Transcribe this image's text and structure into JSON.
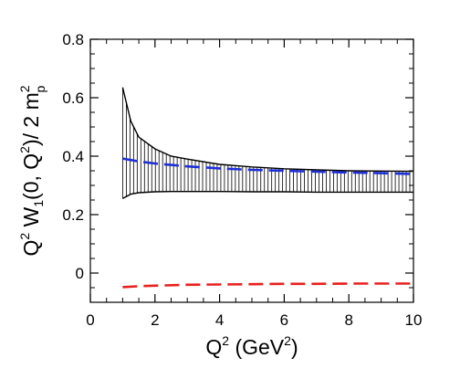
{
  "chart_data": {
    "type": "line",
    "xlabel": {
      "base": "Q",
      "sup": "2",
      "rest": " (GeV",
      "sup2": "2",
      "close": ")"
    },
    "ylabel": {
      "a": "Q",
      "a_sup": "2",
      "b": " W",
      "b_sub": "1",
      "c": "(0, Q",
      "c_sup": "2",
      "d": ")/ 2 m",
      "d_sup": "2",
      "d_sub": "p"
    },
    "xlim": [
      0,
      10
    ],
    "ylim": [
      -0.1,
      0.8
    ],
    "x_ticks": [
      0,
      2,
      4,
      6,
      8,
      10
    ],
    "x_tick_labels": [
      "0",
      "2",
      "4",
      "6",
      "8",
      "10"
    ],
    "y_ticks": [
      0,
      0.2,
      0.4,
      0.6,
      0.8
    ],
    "y_tick_labels": [
      "0",
      "0.2",
      "0.4",
      "0.6",
      "0.8"
    ],
    "grid": false,
    "band": {
      "x": [
        1.0,
        1.25,
        1.5,
        2.0,
        2.5,
        3.0,
        4.0,
        5.0,
        6.0,
        7.0,
        8.0,
        9.0,
        10.0
      ],
      "upper": [
        0.635,
        0.52,
        0.465,
        0.425,
        0.4,
        0.39,
        0.372,
        0.363,
        0.357,
        0.353,
        0.35,
        0.349,
        0.348
      ],
      "lower": [
        0.255,
        0.27,
        0.275,
        0.278,
        0.279,
        0.279,
        0.279,
        0.278,
        0.278,
        0.277,
        0.277,
        0.277,
        0.277
      ],
      "color": "#000000"
    },
    "series": [
      {
        "x": [
          1.0,
          1.5,
          2.0,
          3.0,
          4.0,
          5.0,
          6.0,
          7.0,
          8.0,
          9.0,
          10.0
        ],
        "values": [
          0.392,
          0.382,
          0.375,
          0.365,
          0.358,
          0.353,
          0.35,
          0.347,
          0.344,
          0.342,
          0.339
        ],
        "color": "#1f2fd8",
        "dash": "long"
      },
      {
        "x": [
          1.0,
          1.5,
          2.0,
          3.0,
          4.0,
          5.0,
          6.0,
          7.0,
          8.0,
          9.0,
          10.0
        ],
        "values": [
          -0.048,
          -0.045,
          -0.043,
          -0.04,
          -0.039,
          -0.038,
          -0.037,
          -0.037,
          -0.036,
          -0.036,
          -0.036
        ],
        "color": "#e8201f",
        "dash": "long"
      }
    ]
  }
}
